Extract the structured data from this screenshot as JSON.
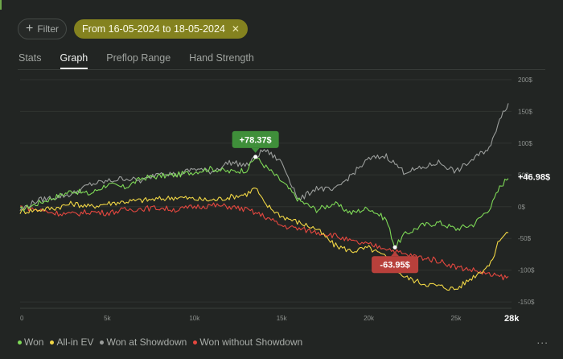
{
  "filter_bar": {
    "filter_label": "Filter",
    "date_range_label": "From 16-05-2024 to 18-05-2024"
  },
  "tabs": [
    {
      "label": "Stats",
      "active": false
    },
    {
      "label": "Graph",
      "active": true
    },
    {
      "label": "Preflop Range",
      "active": false
    },
    {
      "label": "Hand Strength",
      "active": false
    }
  ],
  "legend_menu": "...",
  "chart_data": {
    "type": "line",
    "x_ticks": [
      0,
      5000,
      10000,
      15000,
      20000,
      25000
    ],
    "x_tick_labels": [
      "0",
      "5k",
      "10k",
      "15k",
      "20k",
      "25k"
    ],
    "x_last_label": "28k",
    "xlim": [
      0,
      28000
    ],
    "y_ticks": [
      200,
      150,
      100,
      50,
      0,
      -50,
      -100,
      -150
    ],
    "y_tick_labels": [
      "200$",
      "150$",
      "100$",
      "50$",
      "0$",
      "-50$",
      "-100$",
      "-150$"
    ],
    "ylim": [
      -160,
      205
    ],
    "series": [
      {
        "name": "Won",
        "color": "#7ed957",
        "points": [
          [
            0,
            -5
          ],
          [
            1000,
            5
          ],
          [
            2000,
            15
          ],
          [
            3000,
            25
          ],
          [
            4000,
            20
          ],
          [
            5000,
            35
          ],
          [
            6000,
            30
          ],
          [
            7000,
            45
          ],
          [
            8000,
            48
          ],
          [
            9000,
            50
          ],
          [
            10000,
            55
          ],
          [
            11000,
            60
          ],
          [
            12000,
            55
          ],
          [
            13000,
            58
          ],
          [
            13500,
            78.37
          ],
          [
            14000,
            65
          ],
          [
            15000,
            40
          ],
          [
            16000,
            10
          ],
          [
            17000,
            -5
          ],
          [
            18000,
            5
          ],
          [
            19000,
            -10
          ],
          [
            20000,
            -2
          ],
          [
            21000,
            -20
          ],
          [
            21500,
            -63.95
          ],
          [
            22000,
            -45
          ],
          [
            23000,
            -30
          ],
          [
            24000,
            -25
          ],
          [
            25000,
            -35
          ],
          [
            26000,
            -28
          ],
          [
            27000,
            0
          ],
          [
            27500,
            30
          ],
          [
            28000,
            46.98
          ]
        ],
        "end_label": "+46.98$",
        "callouts": [
          {
            "label": "+78.37$",
            "x": 13500,
            "y": 78.37,
            "color": "#3f8f3a"
          },
          {
            "label": "-63.95$",
            "x": 21500,
            "y": -63.95,
            "color": "#b8403b"
          }
        ]
      },
      {
        "name": "All-in EV",
        "color": "#f0d645",
        "points": [
          [
            0,
            -8
          ],
          [
            1000,
            -5
          ],
          [
            2000,
            -2
          ],
          [
            3000,
            5
          ],
          [
            4000,
            0
          ],
          [
            5000,
            5
          ],
          [
            6000,
            8
          ],
          [
            7000,
            10
          ],
          [
            8000,
            12
          ],
          [
            9000,
            15
          ],
          [
            10000,
            12
          ],
          [
            11000,
            10
          ],
          [
            12000,
            15
          ],
          [
            13000,
            20
          ],
          [
            13500,
            30
          ],
          [
            14000,
            5
          ],
          [
            15000,
            -15
          ],
          [
            16000,
            -25
          ],
          [
            17000,
            -35
          ],
          [
            18000,
            -60
          ],
          [
            19000,
            -70
          ],
          [
            20000,
            -65
          ],
          [
            21000,
            -80
          ],
          [
            22000,
            -110
          ],
          [
            23000,
            -120
          ],
          [
            24000,
            -125
          ],
          [
            25000,
            -130
          ],
          [
            26000,
            -110
          ],
          [
            27000,
            -90
          ],
          [
            27500,
            -50
          ],
          [
            28000,
            -40
          ]
        ]
      },
      {
        "name": "Won at Showdown",
        "color": "#9b9e9c",
        "points": [
          [
            0,
            -5
          ],
          [
            1000,
            10
          ],
          [
            2000,
            15
          ],
          [
            3000,
            20
          ],
          [
            4000,
            35
          ],
          [
            5000,
            40
          ],
          [
            6000,
            45
          ],
          [
            7000,
            40
          ],
          [
            8000,
            55
          ],
          [
            9000,
            50
          ],
          [
            10000,
            60
          ],
          [
            11000,
            55
          ],
          [
            12000,
            70
          ],
          [
            13000,
            65
          ],
          [
            14000,
            90
          ],
          [
            15000,
            70
          ],
          [
            16000,
            10
          ],
          [
            17000,
            30
          ],
          [
            18000,
            25
          ],
          [
            19000,
            50
          ],
          [
            20000,
            75
          ],
          [
            21000,
            80
          ],
          [
            22000,
            55
          ],
          [
            23000,
            60
          ],
          [
            24000,
            70
          ],
          [
            25000,
            55
          ],
          [
            26000,
            75
          ],
          [
            27000,
            95
          ],
          [
            27500,
            140
          ],
          [
            28000,
            162
          ]
        ]
      },
      {
        "name": "Won without Showdown",
        "color": "#e5473f",
        "points": [
          [
            0,
            0
          ],
          [
            1000,
            -5
          ],
          [
            2000,
            -10
          ],
          [
            3000,
            -12
          ],
          [
            4000,
            -8
          ],
          [
            5000,
            -10
          ],
          [
            6000,
            -5
          ],
          [
            7000,
            -3
          ],
          [
            8000,
            -2
          ],
          [
            9000,
            -5
          ],
          [
            10000,
            0
          ],
          [
            11000,
            2
          ],
          [
            12000,
            0
          ],
          [
            13000,
            -5
          ],
          [
            14000,
            -15
          ],
          [
            15000,
            -30
          ],
          [
            16000,
            -35
          ],
          [
            17000,
            -40
          ],
          [
            18000,
            -45
          ],
          [
            19000,
            -55
          ],
          [
            20000,
            -60
          ],
          [
            21000,
            -65
          ],
          [
            22000,
            -75
          ],
          [
            23000,
            -80
          ],
          [
            24000,
            -85
          ],
          [
            25000,
            -95
          ],
          [
            26000,
            -100
          ],
          [
            27000,
            -108
          ],
          [
            28000,
            -112
          ]
        ]
      }
    ]
  }
}
